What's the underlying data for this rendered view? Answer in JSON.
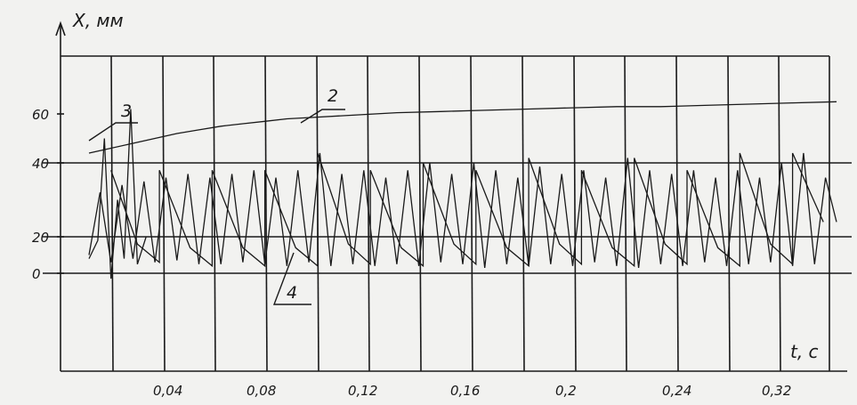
{
  "chart_data": {
    "type": "line",
    "title": "",
    "xlabel": "t, c",
    "ylabel": "X, мм",
    "x_ticks": [
      "0,04",
      "0,08",
      "0,12",
      "0,16",
      "0,2",
      "0,24",
      "0,32"
    ],
    "y_ticks": [
      "60",
      "40",
      "20",
      "0"
    ],
    "xlim": [
      0,
      0.34
    ],
    "ylim": [
      -5,
      72
    ],
    "grid": true,
    "series": [
      {
        "name": "2",
        "x": [
          0.0,
          0.01,
          0.02,
          0.03,
          0.04,
          0.05,
          0.06,
          0.07,
          0.08,
          0.09,
          0.1,
          0.12,
          0.14,
          0.16,
          0.18,
          0.2,
          0.22,
          0.24,
          0.26,
          0.28,
          0.3,
          0.32,
          0.34
        ],
        "y": [
          44,
          46,
          48,
          50,
          52,
          53.5,
          55,
          56,
          57,
          58,
          58.5,
          59.5,
          60.5,
          61,
          61.5,
          62,
          62.5,
          63,
          63,
          63.5,
          64,
          64.5,
          65
        ]
      },
      {
        "name": "3",
        "x": [
          0.0,
          0.004,
          0.007,
          0.01,
          0.013,
          0.016,
          0.019,
          0.022,
          0.026
        ],
        "y": [
          8,
          18,
          50,
          -3,
          30,
          8,
          62,
          5,
          20
        ]
      },
      {
        "name": "4",
        "x": [
          0.0,
          0.005,
          0.01,
          0.015,
          0.02,
          0.025,
          0.03,
          0.035,
          0.04,
          0.045,
          0.05,
          0.055,
          0.06,
          0.065,
          0.07,
          0.075,
          0.08,
          0.085,
          0.09,
          0.095,
          0.1,
          0.105,
          0.11,
          0.115,
          0.12,
          0.125,
          0.13,
          0.135,
          0.14,
          0.145,
          0.15,
          0.155,
          0.16,
          0.165,
          0.17,
          0.175,
          0.18,
          0.185,
          0.19,
          0.195,
          0.2,
          0.205,
          0.21,
          0.215,
          0.22,
          0.225,
          0.23,
          0.235,
          0.24,
          0.245,
          0.25,
          0.255,
          0.26,
          0.265,
          0.27,
          0.275,
          0.28,
          0.285,
          0.29,
          0.295,
          0.3,
          0.305,
          0.31,
          0.315,
          0.32,
          0.325,
          0.33,
          0.335,
          0.34
        ],
        "y": [
          10,
          32,
          6,
          34,
          8,
          35,
          6,
          36,
          7,
          37,
          5,
          36,
          5,
          37,
          6,
          38,
          5,
          36,
          4,
          38,
          6,
          44,
          4,
          37,
          5,
          38,
          4,
          36,
          5,
          38,
          4,
          40,
          6,
          37,
          5,
          40,
          3,
          38,
          5,
          36,
          4,
          39,
          5,
          37,
          4,
          38,
          6,
          36,
          4,
          42,
          3,
          38,
          5,
          37,
          4,
          38,
          6,
          36,
          4,
          38,
          5,
          36,
          6,
          40,
          4,
          44,
          5,
          36,
          24
        ]
      },
      {
        "name": "",
        "x": [
          0.01,
          0.022,
          0.032,
          0.032,
          0.046,
          0.056,
          0.056,
          0.07,
          0.08,
          0.08,
          0.094,
          0.104,
          0.104,
          0.118,
          0.128,
          0.128,
          0.142,
          0.152,
          0.152,
          0.166,
          0.176,
          0.176,
          0.19,
          0.2,
          0.2,
          0.214,
          0.224,
          0.224,
          0.238,
          0.248,
          0.248,
          0.262,
          0.272,
          0.272,
          0.286,
          0.296,
          0.296,
          0.31,
          0.32,
          0.32,
          0.334
        ],
        "y": [
          38,
          16,
          6,
          38,
          14,
          4,
          38,
          14,
          4,
          38,
          14,
          4,
          44,
          16,
          5,
          38,
          14,
          4,
          40,
          16,
          5,
          38,
          14,
          4,
          42,
          16,
          5,
          38,
          14,
          4,
          42,
          16,
          5,
          38,
          14,
          4,
          44,
          16,
          5,
          44,
          24
        ]
      }
    ]
  }
}
